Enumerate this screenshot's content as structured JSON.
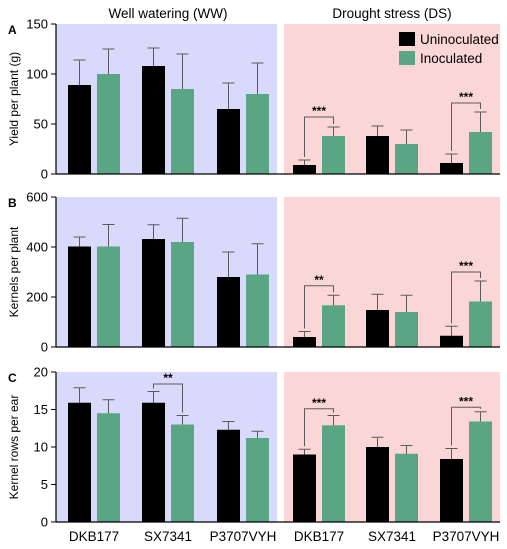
{
  "condition_labels": [
    "Well watering (WW)",
    "Drought stress (DS)"
  ],
  "colors": {
    "ww_bg": "#d9d9fb",
    "ds_bg": "#fad6d6",
    "uninoculated": "#000000",
    "inoculated": "#5aa583",
    "error_bar": "#5a5a5a"
  },
  "legend": {
    "placement": "top-right",
    "entries": [
      "Uninoculated",
      "Inoculated"
    ]
  },
  "chart_data": [
    {
      "type": "bar",
      "panel_letter": "A",
      "ylabel": "Yield per plant (g)",
      "ylim": [
        0,
        150
      ],
      "yticks": [
        "0",
        "50",
        "100",
        "150"
      ],
      "tick_values": [
        0,
        50,
        100,
        150
      ],
      "categories": [
        "DKB177",
        "SX7341",
        "P3707VYH",
        "DKB177",
        "SX7341",
        "P3707VYH"
      ],
      "series": [
        {
          "name": "Uninoculated",
          "values": [
            89,
            108,
            65,
            9,
            38,
            11
          ],
          "errors": [
            25,
            18,
            26,
            5,
            10,
            9
          ]
        },
        {
          "name": "Inoculated",
          "values": [
            100,
            85,
            80,
            38,
            30,
            42
          ],
          "errors": [
            25,
            35,
            31,
            9,
            14,
            20
          ]
        }
      ],
      "annotations": [
        {
          "category_index": 3,
          "text": "***",
          "level": 57
        },
        {
          "category_index": 5,
          "text": "***",
          "level": 71
        }
      ]
    },
    {
      "type": "bar",
      "panel_letter": "B",
      "ylabel": "Kernels per plant",
      "ylim": [
        0,
        600
      ],
      "yticks": [
        "0",
        "200",
        "400",
        "600"
      ],
      "tick_values": [
        0,
        200,
        400,
        600
      ],
      "categories": [
        "DKB177",
        "SX7341",
        "P3707VYH",
        "DKB177",
        "SX7341",
        "P3707VYH"
      ],
      "series": [
        {
          "name": "Uninoculated",
          "values": [
            402,
            432,
            280,
            40,
            148,
            45
          ],
          "errors": [
            38,
            57,
            100,
            22,
            63,
            38
          ]
        },
        {
          "name": "Inoculated",
          "values": [
            402,
            420,
            290,
            167,
            140,
            182
          ],
          "errors": [
            88,
            95,
            123,
            40,
            67,
            82
          ]
        }
      ],
      "annotations": [
        {
          "category_index": 3,
          "text": "**",
          "level": 245
        },
        {
          "category_index": 5,
          "text": "***",
          "level": 300
        }
      ]
    },
    {
      "type": "bar",
      "panel_letter": "C",
      "ylabel": "Kernel rows per ear",
      "ylim": [
        0,
        20
      ],
      "yticks": [
        "0",
        "5",
        "10",
        "15",
        "20"
      ],
      "tick_values": [
        0,
        5,
        10,
        15,
        20
      ],
      "categories": [
        "DKB177",
        "SX7341",
        "P3707VYH",
        "DKB177",
        "SX7341",
        "P3707VYH"
      ],
      "series": [
        {
          "name": "Uninoculated",
          "values": [
            15.9,
            15.9,
            12.3,
            9.0,
            10.0,
            8.4
          ],
          "errors": [
            2.0,
            1.5,
            1.1,
            0.7,
            1.3,
            1.4
          ]
        },
        {
          "name": "Inoculated",
          "values": [
            14.5,
            13.0,
            11.2,
            12.9,
            9.1,
            13.4
          ],
          "errors": [
            1.8,
            1.2,
            0.9,
            1.3,
            1.1,
            1.3
          ]
        }
      ],
      "annotations": [
        {
          "category_index": 1,
          "text": "**",
          "level": 18.4
        },
        {
          "category_index": 3,
          "text": "***",
          "level": 15.1
        },
        {
          "category_index": 5,
          "text": "***",
          "level": 15.3
        }
      ]
    }
  ]
}
